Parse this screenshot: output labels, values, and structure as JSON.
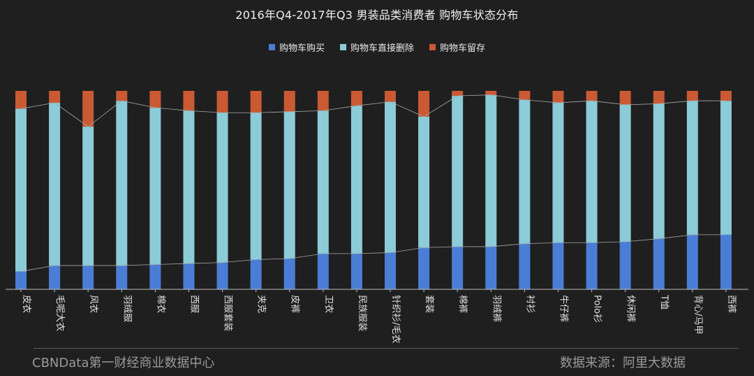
{
  "title": "2016年Q4-2017年Q3 男装品类消费者 购物车状态分布",
  "legend": [
    {
      "label": "购物车购买",
      "color": "#4a7ed6"
    },
    {
      "label": "购物车直接删除",
      "color": "#8ccbd8"
    },
    {
      "label": "购物车留存",
      "color": "#c95a34"
    }
  ],
  "footer": {
    "left": "CBNData第一财经商业数据中心",
    "right": "数据来源：阿里大数据"
  },
  "colors": {
    "background": "#1f1f1f",
    "axis": "#bdbdbd",
    "trend_line": "#a8a8a8"
  },
  "chart_data": {
    "type": "stacked-bar-100",
    "title": "2016年Q4-2017年Q3 男装品类消费者 购物车状态分布",
    "ylim": [
      0,
      100
    ],
    "categories": [
      "皮衣",
      "毛呢大衣",
      "风衣",
      "羽绒服",
      "棉衣",
      "西服",
      "西服套装",
      "夹克",
      "皮裤",
      "卫衣",
      "民族服装",
      "针织衫/毛衣",
      "套装",
      "棉裤",
      "羽绒裤",
      "衬衫",
      "牛仔裤",
      "Polo衫",
      "休闲裤",
      "T恤",
      "背心/马甲",
      "西裤"
    ],
    "series": [
      {
        "name": "购物车购买",
        "values": [
          9,
          12,
          12,
          12,
          12.5,
          13,
          13.5,
          15,
          15.5,
          18,
          18,
          18.5,
          21,
          21.5,
          21.5,
          23,
          23.5,
          23.5,
          24,
          25.5,
          27.5,
          27.5
        ]
      },
      {
        "name": "购物车直接删除",
        "values": [
          82,
          82,
          70,
          83,
          79,
          77,
          75.5,
          74,
          74,
          72,
          74.5,
          76,
          66,
          76,
          76.5,
          72.5,
          70.5,
          71.5,
          69,
          68,
          67.5,
          67.5
        ]
      },
      {
        "name": "购物车留存",
        "values": [
          9,
          6,
          18,
          5,
          8.5,
          10,
          11,
          11,
          10.5,
          10,
          7.5,
          5.5,
          13,
          2.5,
          2,
          4.5,
          6,
          5,
          7,
          6.5,
          5,
          5
        ]
      }
    ]
  }
}
